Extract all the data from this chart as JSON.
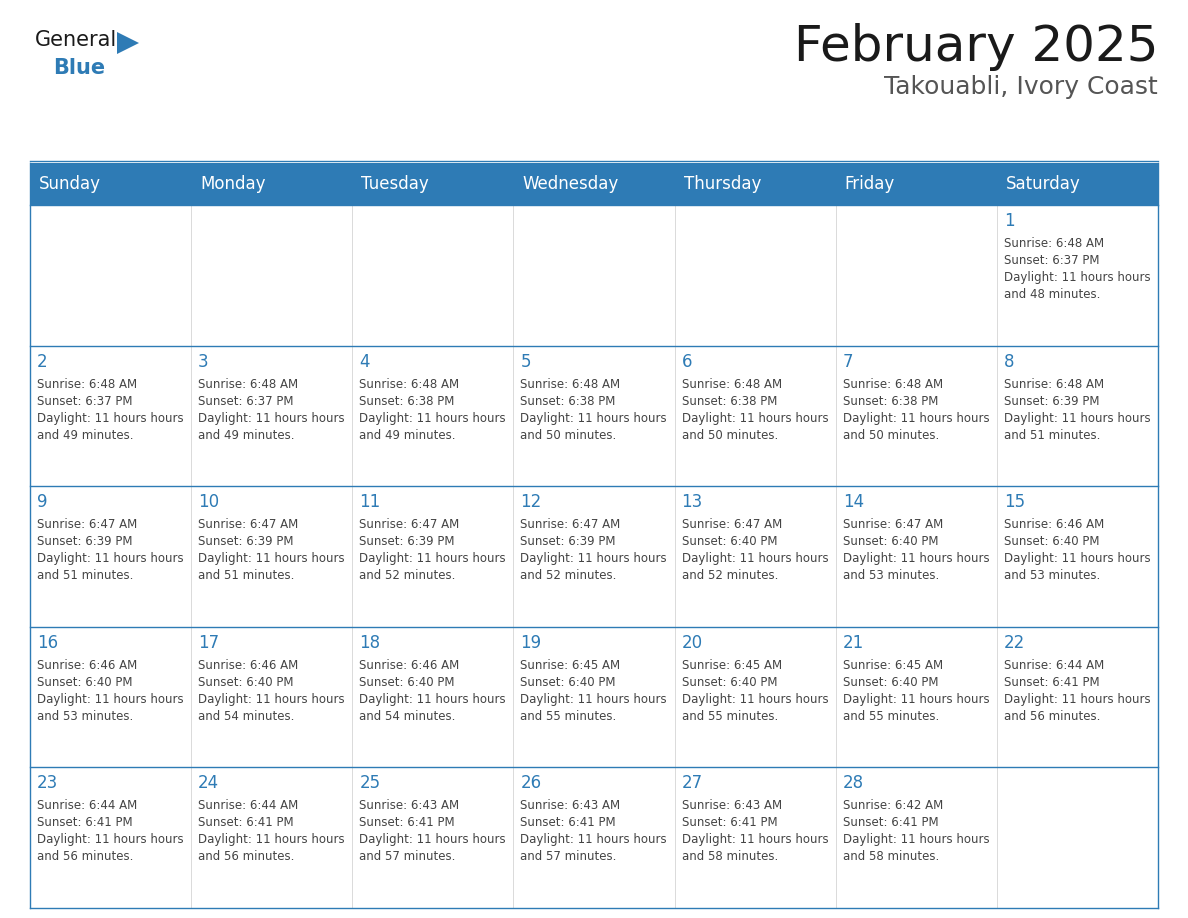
{
  "title": "February 2025",
  "subtitle": "Takouabli, Ivory Coast",
  "header_bg": "#2E7BB5",
  "header_text_color": "#FFFFFF",
  "cell_bg": "#FFFFFF",
  "border_color": "#2E7BB5",
  "day_number_color": "#2E7BB5",
  "text_color": "#555555",
  "days_of_week": [
    "Sunday",
    "Monday",
    "Tuesday",
    "Wednesday",
    "Thursday",
    "Friday",
    "Saturday"
  ],
  "calendar": [
    [
      null,
      null,
      null,
      null,
      null,
      null,
      {
        "day": 1,
        "sunrise": "6:48 AM",
        "sunset": "6:37 PM",
        "daylight": "11 hours and 48 minutes"
      }
    ],
    [
      {
        "day": 2,
        "sunrise": "6:48 AM",
        "sunset": "6:37 PM",
        "daylight": "11 hours and 49 minutes"
      },
      {
        "day": 3,
        "sunrise": "6:48 AM",
        "sunset": "6:37 PM",
        "daylight": "11 hours and 49 minutes"
      },
      {
        "day": 4,
        "sunrise": "6:48 AM",
        "sunset": "6:38 PM",
        "daylight": "11 hours and 49 minutes"
      },
      {
        "day": 5,
        "sunrise": "6:48 AM",
        "sunset": "6:38 PM",
        "daylight": "11 hours and 50 minutes"
      },
      {
        "day": 6,
        "sunrise": "6:48 AM",
        "sunset": "6:38 PM",
        "daylight": "11 hours and 50 minutes"
      },
      {
        "day": 7,
        "sunrise": "6:48 AM",
        "sunset": "6:38 PM",
        "daylight": "11 hours and 50 minutes"
      },
      {
        "day": 8,
        "sunrise": "6:48 AM",
        "sunset": "6:39 PM",
        "daylight": "11 hours and 51 minutes"
      }
    ],
    [
      {
        "day": 9,
        "sunrise": "6:47 AM",
        "sunset": "6:39 PM",
        "daylight": "11 hours and 51 minutes"
      },
      {
        "day": 10,
        "sunrise": "6:47 AM",
        "sunset": "6:39 PM",
        "daylight": "11 hours and 51 minutes"
      },
      {
        "day": 11,
        "sunrise": "6:47 AM",
        "sunset": "6:39 PM",
        "daylight": "11 hours and 52 minutes"
      },
      {
        "day": 12,
        "sunrise": "6:47 AM",
        "sunset": "6:39 PM",
        "daylight": "11 hours and 52 minutes"
      },
      {
        "day": 13,
        "sunrise": "6:47 AM",
        "sunset": "6:40 PM",
        "daylight": "11 hours and 52 minutes"
      },
      {
        "day": 14,
        "sunrise": "6:47 AM",
        "sunset": "6:40 PM",
        "daylight": "11 hours and 53 minutes"
      },
      {
        "day": 15,
        "sunrise": "6:46 AM",
        "sunset": "6:40 PM",
        "daylight": "11 hours and 53 minutes"
      }
    ],
    [
      {
        "day": 16,
        "sunrise": "6:46 AM",
        "sunset": "6:40 PM",
        "daylight": "11 hours and 53 minutes"
      },
      {
        "day": 17,
        "sunrise": "6:46 AM",
        "sunset": "6:40 PM",
        "daylight": "11 hours and 54 minutes"
      },
      {
        "day": 18,
        "sunrise": "6:46 AM",
        "sunset": "6:40 PM",
        "daylight": "11 hours and 54 minutes"
      },
      {
        "day": 19,
        "sunrise": "6:45 AM",
        "sunset": "6:40 PM",
        "daylight": "11 hours and 55 minutes"
      },
      {
        "day": 20,
        "sunrise": "6:45 AM",
        "sunset": "6:40 PM",
        "daylight": "11 hours and 55 minutes"
      },
      {
        "day": 21,
        "sunrise": "6:45 AM",
        "sunset": "6:40 PM",
        "daylight": "11 hours and 55 minutes"
      },
      {
        "day": 22,
        "sunrise": "6:44 AM",
        "sunset": "6:41 PM",
        "daylight": "11 hours and 56 minutes"
      }
    ],
    [
      {
        "day": 23,
        "sunrise": "6:44 AM",
        "sunset": "6:41 PM",
        "daylight": "11 hours and 56 minutes"
      },
      {
        "day": 24,
        "sunrise": "6:44 AM",
        "sunset": "6:41 PM",
        "daylight": "11 hours and 56 minutes"
      },
      {
        "day": 25,
        "sunrise": "6:43 AM",
        "sunset": "6:41 PM",
        "daylight": "11 hours and 57 minutes"
      },
      {
        "day": 26,
        "sunrise": "6:43 AM",
        "sunset": "6:41 PM",
        "daylight": "11 hours and 57 minutes"
      },
      {
        "day": 27,
        "sunrise": "6:43 AM",
        "sunset": "6:41 PM",
        "daylight": "11 hours and 58 minutes"
      },
      {
        "day": 28,
        "sunrise": "6:42 AM",
        "sunset": "6:41 PM",
        "daylight": "11 hours and 58 minutes"
      },
      null
    ]
  ],
  "logo_text_general": "General",
  "logo_text_blue": "Blue",
  "logo_triangle_color": "#2E7BB5",
  "title_fontsize": 36,
  "subtitle_fontsize": 18,
  "dow_fontsize": 12,
  "day_num_fontsize": 12,
  "cell_text_fontsize": 8.5
}
